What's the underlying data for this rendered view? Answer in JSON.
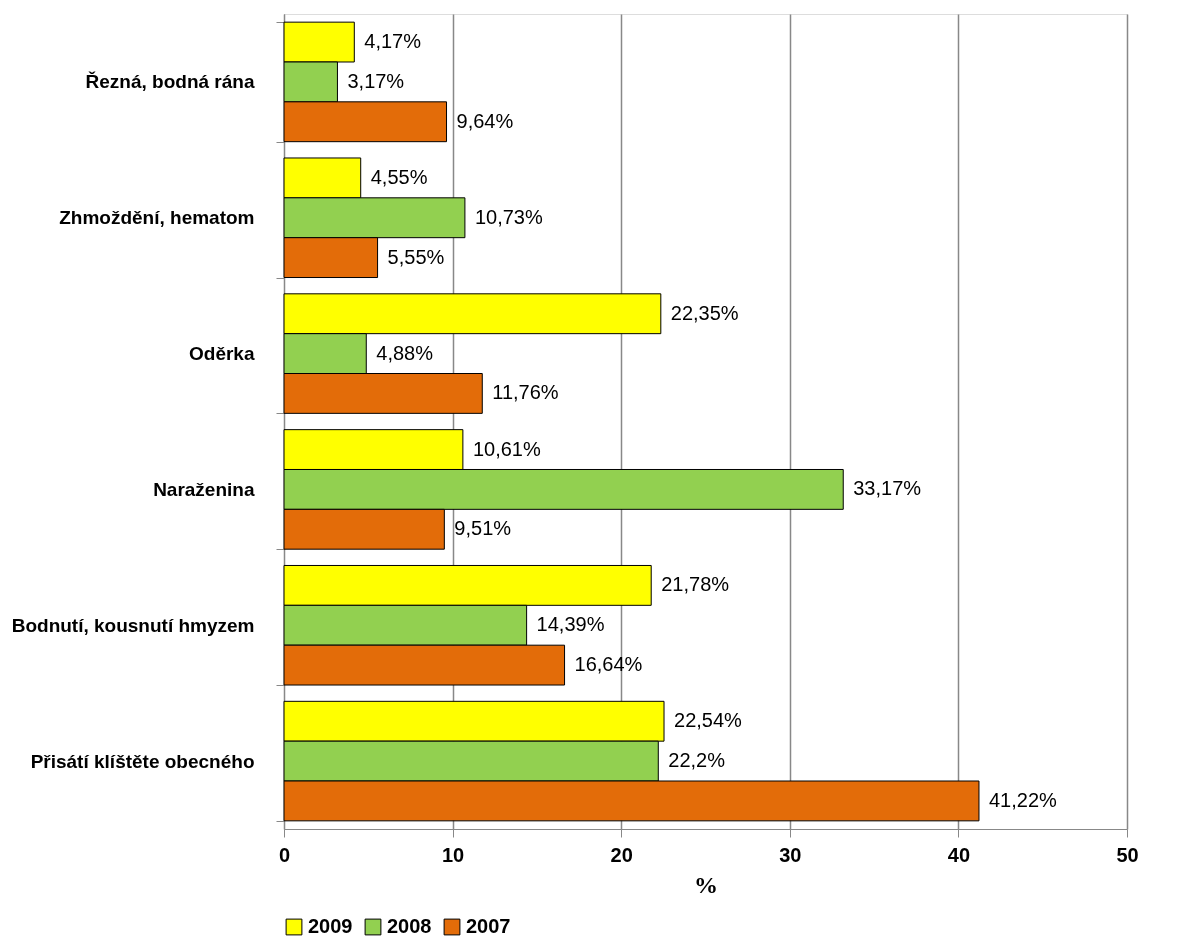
{
  "chart_data": {
    "type": "bar",
    "orientation": "horizontal",
    "xlabel": "%",
    "categories": [
      "Řezná, bodná rána",
      "Zhmoždění, hematom",
      "Oděrka",
      "Naraženina",
      "Bodnutí, kousnutí  hmyzem",
      "Přisátí klíštěte obecného"
    ],
    "series": [
      {
        "name": "2009",
        "color": "#ffff00",
        "values": [
          4.17,
          4.55,
          22.35,
          10.61,
          21.78,
          22.54
        ],
        "value_labels": [
          "4,17%",
          "4,55%",
          "22,35%",
          "10,61%",
          "21,78%",
          "22,54%"
        ]
      },
      {
        "name": "2008",
        "color": "#92d050",
        "values": [
          3.17,
          10.73,
          4.88,
          33.17,
          14.39,
          22.2
        ],
        "value_labels": [
          "3,17%",
          "10,73%",
          "4,88%",
          "33,17%",
          "14,39%",
          "22,2%"
        ]
      },
      {
        "name": "2007",
        "color": "#e36c09",
        "values": [
          9.64,
          5.55,
          11.76,
          9.51,
          16.64,
          41.22
        ],
        "value_labels": [
          "9,64%",
          "5,55%",
          "11,76%",
          "9,51%",
          "16,64%",
          "41,22%"
        ]
      }
    ],
    "xlim": [
      0,
      50
    ],
    "xticks": [
      0,
      10,
      20,
      30,
      40,
      50
    ],
    "grid": "x",
    "legend": "bottom"
  }
}
